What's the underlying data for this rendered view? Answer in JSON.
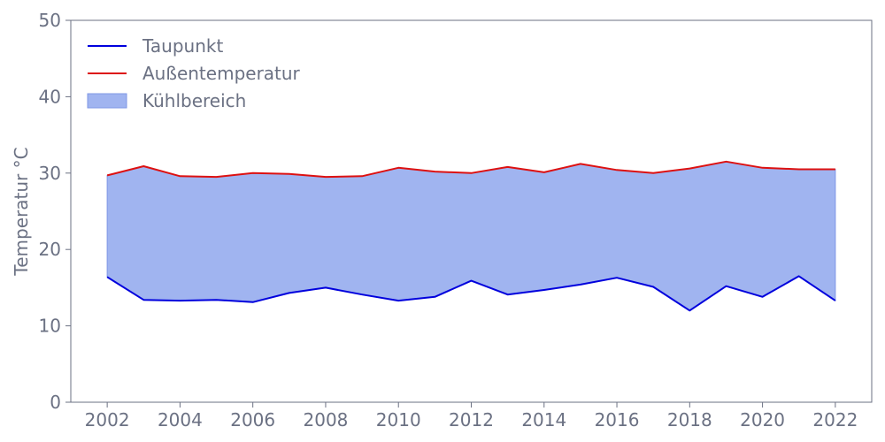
{
  "chart_data": {
    "type": "area",
    "title": "",
    "xlabel": "",
    "ylabel": "Temperatur °C",
    "x": [
      2002,
      2003,
      2004,
      2005,
      2006,
      2007,
      2008,
      2009,
      2010,
      2011,
      2012,
      2013,
      2014,
      2015,
      2016,
      2017,
      2018,
      2019,
      2020,
      2021,
      2022
    ],
    "series": [
      {
        "name": "Taupunkt",
        "color": "#0000dd",
        "values": [
          16.4,
          13.4,
          13.3,
          13.4,
          13.1,
          14.3,
          15.0,
          14.1,
          13.3,
          13.8,
          15.9,
          14.1,
          14.7,
          15.4,
          16.3,
          15.1,
          12.0,
          15.2,
          13.8,
          16.5,
          13.3
        ]
      },
      {
        "name": "Außentemperatur",
        "color": "#dd1111",
        "values": [
          29.7,
          30.9,
          29.6,
          29.5,
          30.0,
          29.9,
          29.5,
          29.6,
          30.7,
          30.2,
          30.0,
          30.8,
          30.1,
          31.2,
          30.4,
          30.0,
          30.6,
          31.5,
          30.7,
          30.5,
          30.5
        ]
      }
    ],
    "fill_between": {
      "name": "Kühlbereich",
      "color": "#a0b4f0",
      "edge_color": "#7f97e6"
    },
    "xlim": [
      2001,
      2023
    ],
    "ylim": [
      0,
      50
    ],
    "xticks": [
      "2002",
      "2004",
      "2006",
      "2008",
      "2010",
      "2012",
      "2014",
      "2016",
      "2018",
      "2020",
      "2022"
    ],
    "yticks": [
      "0",
      "10",
      "20",
      "30",
      "40",
      "50"
    ],
    "grid": false,
    "legend_position": "top-left"
  }
}
